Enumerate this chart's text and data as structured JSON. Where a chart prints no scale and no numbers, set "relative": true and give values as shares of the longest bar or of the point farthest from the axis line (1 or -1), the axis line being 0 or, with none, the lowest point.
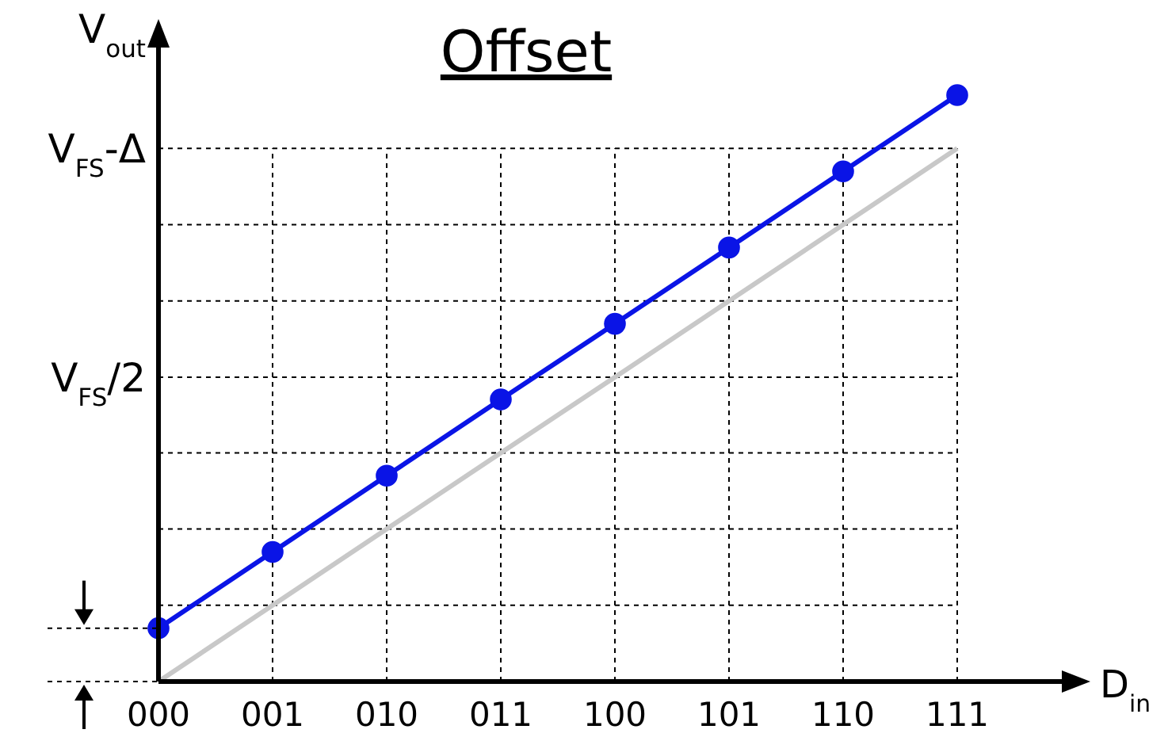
{
  "chart_data": {
    "type": "line",
    "title": "Offset",
    "xlabel": "D$_{in}$",
    "ylabel": "V$_{out}$",
    "categories": [
      "000",
      "001",
      "010",
      "011",
      "100",
      "101",
      "110",
      "111"
    ],
    "relative": true,
    "annotations": [
      "V$_{FS}$-Δ",
      "V$_{FS}$/2"
    ],
    "grid": true,
    "line_style": "solid",
    "series": [
      {
        "color": "#c8c8c8",
        "marker": "none",
        "values": [
          0,
          0.13,
          0.26,
          0.39,
          0.519,
          0.649,
          0.779,
          0.909
        ]
      },
      {
        "color": "#0a14e6",
        "marker": "circle",
        "values": [
          0.091,
          0.221,
          0.351,
          0.481,
          0.61,
          0.74,
          0.87,
          1
        ]
      }
    ]
  }
}
